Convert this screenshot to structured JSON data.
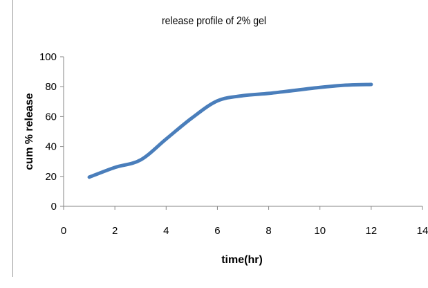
{
  "chart_data": {
    "type": "line",
    "title": "release profile of 2% gel",
    "xlabel": "time(hr)",
    "ylabel": "cum % release",
    "xlim": [
      0,
      14
    ],
    "ylim": [
      0,
      100
    ],
    "x_ticks": [
      0,
      2,
      4,
      6,
      8,
      10,
      12,
      14
    ],
    "y_ticks": [
      0,
      20,
      40,
      60,
      80,
      100
    ],
    "grid": false,
    "legend": "none",
    "series": [
      {
        "color": "#4a7ebb",
        "x": [
          1,
          2,
          3,
          4,
          5,
          6,
          7,
          8,
          9,
          10,
          11,
          12
        ],
        "y": [
          19.5,
          26,
          31,
          45,
          59,
          70.5,
          74,
          75.5,
          77.5,
          79.5,
          81,
          81.5
        ]
      }
    ]
  }
}
